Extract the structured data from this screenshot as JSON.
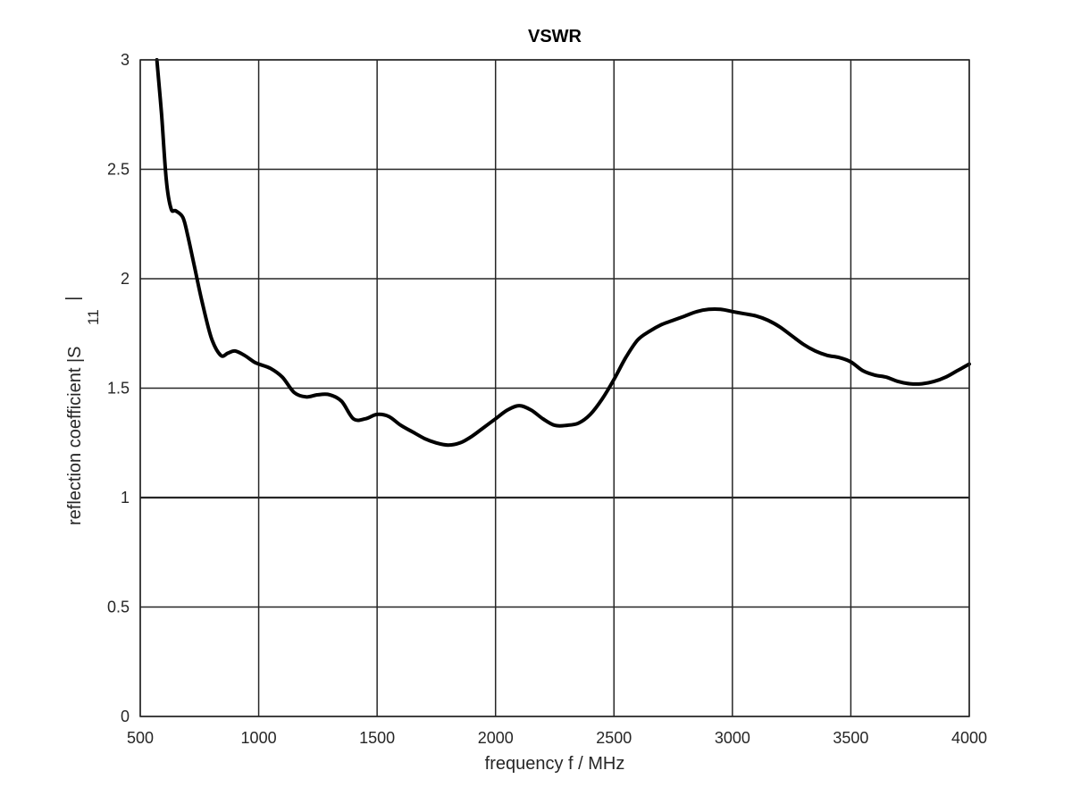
{
  "chart_data": {
    "type": "line",
    "title": "VSWR",
    "xlabel": "frequency f / MHz",
    "ylabel_main": "reflection coefficient |S",
    "ylabel_sub": "11",
    "ylabel_end": "|",
    "xlim": [
      500,
      4000
    ],
    "ylim": [
      0,
      3
    ],
    "xticks": [
      500,
      1000,
      1500,
      2000,
      2500,
      3000,
      3500,
      4000
    ],
    "yticks": [
      0,
      0.5,
      1,
      1.5,
      2,
      2.5,
      3
    ],
    "xtick_labels": [
      "500",
      "1000",
      "1500",
      "2000",
      "2500",
      "3000",
      "3500",
      "4000"
    ],
    "ytick_labels": [
      "0",
      "0.5",
      "1",
      "1.5",
      "2",
      "2.5",
      "3"
    ],
    "grid": true,
    "line_color": "#000000",
    "series": [
      {
        "x": [
          570,
          590,
          610,
          630,
          650,
          680,
          700,
          730,
          760,
          800,
          840,
          870,
          900,
          940,
          980,
          1000,
          1050,
          1100,
          1150,
          1200,
          1250,
          1300,
          1350,
          1400,
          1450,
          1500,
          1550,
          1600,
          1650,
          1700,
          1750,
          1800,
          1850,
          1900,
          1950,
          2000,
          2050,
          2100,
          2150,
          2200,
          2250,
          2300,
          2350,
          2400,
          2450,
          2500,
          2550,
          2600,
          2650,
          2700,
          2750,
          2800,
          2850,
          2900,
          2950,
          3000,
          3050,
          3100,
          3150,
          3200,
          3250,
          3300,
          3350,
          3400,
          3450,
          3500,
          3550,
          3600,
          3650,
          3700,
          3750,
          3800,
          3850,
          3900,
          3950,
          4000
        ],
        "y": [
          3.0,
          2.75,
          2.45,
          2.32,
          2.31,
          2.28,
          2.2,
          2.05,
          1.9,
          1.73,
          1.65,
          1.66,
          1.67,
          1.65,
          1.62,
          1.61,
          1.59,
          1.55,
          1.48,
          1.46,
          1.47,
          1.47,
          1.44,
          1.36,
          1.36,
          1.38,
          1.37,
          1.33,
          1.3,
          1.27,
          1.25,
          1.24,
          1.25,
          1.28,
          1.32,
          1.36,
          1.4,
          1.42,
          1.4,
          1.36,
          1.33,
          1.33,
          1.34,
          1.38,
          1.45,
          1.54,
          1.64,
          1.72,
          1.76,
          1.79,
          1.81,
          1.83,
          1.85,
          1.86,
          1.86,
          1.85,
          1.84,
          1.83,
          1.81,
          1.78,
          1.74,
          1.7,
          1.67,
          1.65,
          1.64,
          1.62,
          1.58,
          1.56,
          1.55,
          1.53,
          1.52,
          1.52,
          1.53,
          1.55,
          1.58,
          1.61
        ]
      }
    ]
  }
}
